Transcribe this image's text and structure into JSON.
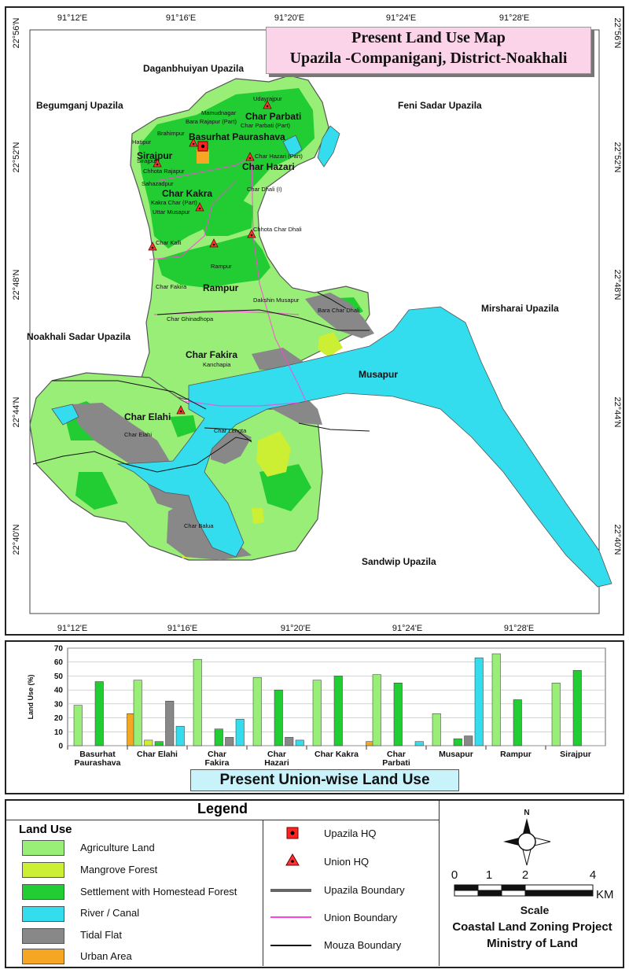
{
  "title": {
    "line1": "Present Land Use  Map",
    "line2": "Upazila -Companiganj, District-Noakhali"
  },
  "grid": {
    "top_lon": [
      "91°12'E",
      "91°16'E",
      "91°20'E",
      "91°24'E",
      "91°28'E"
    ],
    "bottom_lon": [
      "91°12'E",
      "91°16'E",
      "91°20'E",
      "91°24'E",
      "91°28'E"
    ],
    "lat": [
      "22°56'N",
      "22°52'N",
      "22°48'N",
      "22°44'N",
      "22°40'N"
    ]
  },
  "map_labels": {
    "neighbors": {
      "daganbhuiyan": "Daganbhuiyan Upazila",
      "begumganj": "Begumganj Upazila",
      "feni": "Feni Sadar Upazila",
      "mirsharai": "Mirsharai Upazila",
      "noakhali": "Noakhali Sadar Upazila",
      "sandwip": "Sandwip Upazila"
    },
    "unions": {
      "char_parbati": "Char Parbati",
      "basurhat": "Basurhat Paurashava",
      "sirajpur": "Sirajpur",
      "char_hazari": "Char Hazari",
      "char_kakra": "Char Kakra",
      "rampur": "Rampur",
      "char_fakira": "Char Fakira",
      "musapur": "Musapur",
      "char_elahi": "Char Elahi"
    },
    "mouzas": {
      "udayrajpur": "Udayrajpur",
      "mamudnagar": "Mamudnagar",
      "bara_rajapur": "Bara Rajapur (Part)",
      "char_parbati_part": "Char Parbati (Part)",
      "brahimpur": "Brahimpur",
      "hatipur": "Hatipur",
      "sirajpur_m": "Sirajpur",
      "chhota_rajapur": "Chhota Rajapur",
      "sahazadpur": "Sahazadpur",
      "char_hazari_part": "Char Hazari (Part)",
      "char_dhali": "Char Dhali (I)",
      "kakra_char": "Kakra Char (Part)",
      "uttar_musapur": "Uttar Musapur",
      "chhota_char_dhali": "Chhota Char Dhali",
      "char_kalli": "Char Kalli",
      "rampur_m": "Rampur",
      "char_fakira_m": "Char Fakira",
      "dakshin_musapur": "Dakshin Musapur",
      "bara_char_dhali": "Bara Char Dhali",
      "char_ghinadhopa": "Char Ghinadhopa",
      "kanchapia": "Kanchapia",
      "char_elahi_m": "Char Elahi",
      "char_lengta": "Char Lengta",
      "char_balua": "Char Balua"
    }
  },
  "colors": {
    "agriculture": "#99ee77",
    "mangrove": "#ccee33",
    "settlement": "#22cc33",
    "river": "#33ddee",
    "tidal_flat": "#888888",
    "urban": "#f5a623",
    "union_boundary": "#ff44dd",
    "mouza_boundary": "#111111",
    "upazila_boundary": "#666666"
  },
  "chart_data": {
    "type": "bar",
    "title": "Present Union-wise Land Use",
    "ylabel": "Land Use (%)",
    "ylim": [
      0,
      70
    ],
    "yticks": [
      0,
      10,
      20,
      30,
      40,
      50,
      60,
      70
    ],
    "categories": [
      "Basurhat Paurashava",
      "Char Elahi",
      "Char Fakira",
      "Char Hazari",
      "Char Kakra",
      "Char Parbati",
      "Musapur",
      "Rampur",
      "Sirajpur"
    ],
    "category_labels": [
      [
        "Basurhat",
        "Paurashava"
      ],
      [
        "Char Elahi"
      ],
      [
        "Char",
        "Fakira"
      ],
      [
        "Char",
        "Hazari"
      ],
      [
        "Char Kakra"
      ],
      [
        "Char",
        "Parbati"
      ],
      [
        "Musapur"
      ],
      [
        "Rampur"
      ],
      [
        "Sirajpur"
      ]
    ],
    "series": [
      {
        "name": "Agriculture Land",
        "values": [
          29,
          47,
          62,
          49,
          47,
          51,
          23,
          66,
          45
        ]
      },
      {
        "name": "Mangrove Forest",
        "values": [
          0,
          4,
          0,
          0,
          0,
          0,
          0,
          0,
          0
        ]
      },
      {
        "name": "Settlement with Homestead Forest",
        "values": [
          46,
          3,
          12,
          40,
          50,
          45,
          5,
          33,
          54
        ]
      },
      {
        "name": "Tidal Flat",
        "values": [
          0,
          32,
          6,
          6,
          0,
          0,
          7,
          0,
          0
        ]
      },
      {
        "name": "River / Canal",
        "values": [
          0,
          14,
          19,
          4,
          0,
          3,
          63,
          0,
          0
        ]
      },
      {
        "name": "Urban Area",
        "values": [
          23,
          0,
          0,
          0,
          3,
          0,
          0,
          0,
          0
        ]
      }
    ]
  },
  "legend": {
    "heading": "Legend",
    "land_use_title": "Land Use",
    "land_use": [
      {
        "label": "Agriculture Land",
        "color": "#99ee77"
      },
      {
        "label": "Mangrove Forest",
        "color": "#ccee33"
      },
      {
        "label": "Settlement with Homestead Forest",
        "color": "#22cc33"
      },
      {
        "label": "River / Canal",
        "color": "#33ddee"
      },
      {
        "label": "Tidal Flat",
        "color": "#888888"
      },
      {
        "label": "Urban Area",
        "color": "#f5a623"
      }
    ],
    "symbols": {
      "upazila_hq": "Upazila HQ",
      "union_hq": "Union HQ",
      "upazila_boundary": "Upazila Boundary",
      "union_boundary": "Union Boundary",
      "mouza_boundary": "Mouza Boundary"
    },
    "north": "N",
    "scale_title": "Scale",
    "scale_ticks": [
      "0",
      "1",
      "2",
      "4"
    ],
    "scale_unit": "KM",
    "credit_1": "Coastal Land Zoning Project",
    "credit_2": "Ministry of Land"
  }
}
